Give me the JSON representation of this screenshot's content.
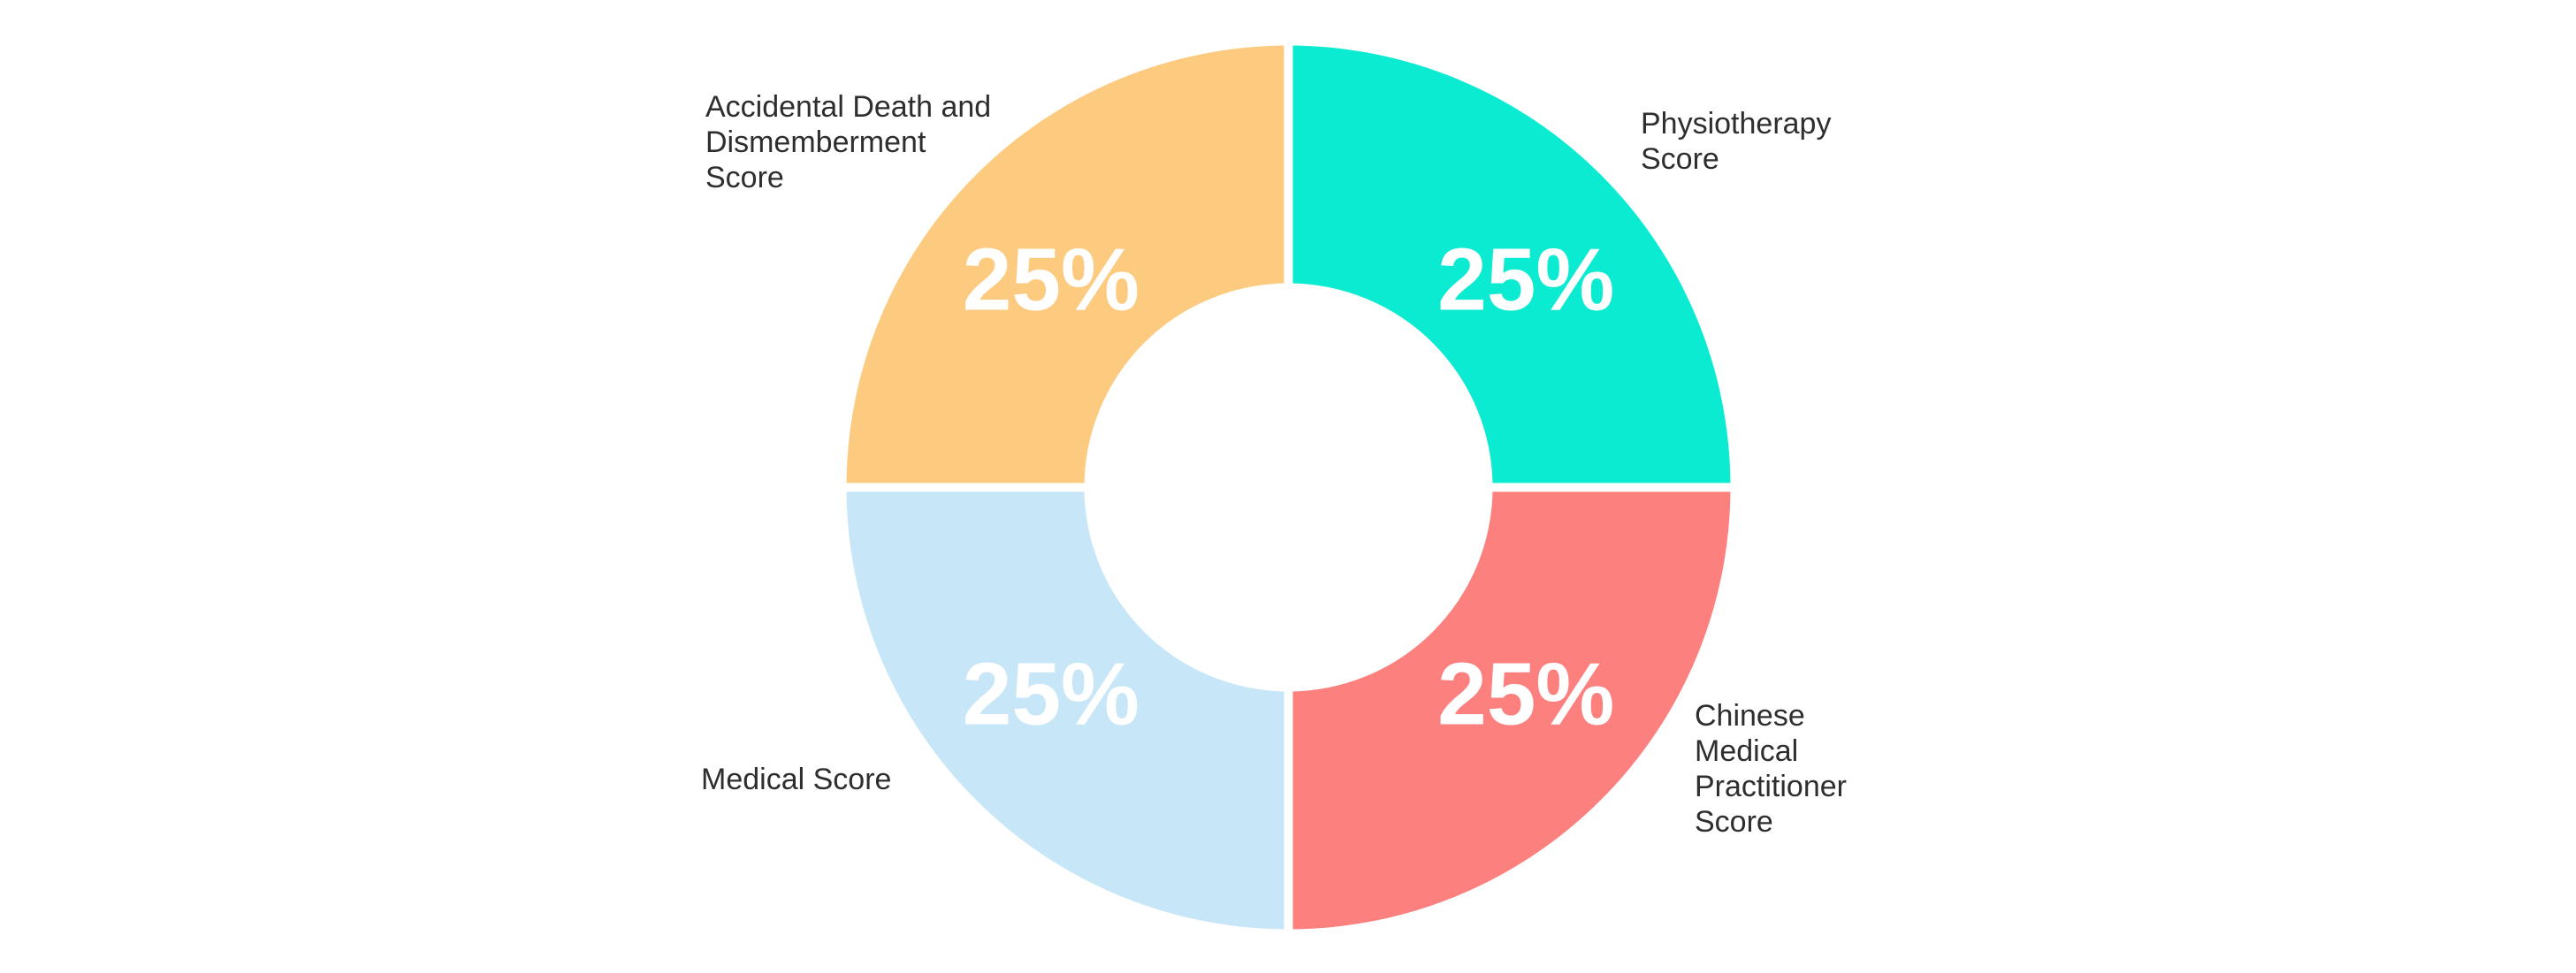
{
  "chart_data": {
    "type": "pie",
    "subtype": "donut",
    "title": "",
    "legend_position": "outside-labels",
    "grid": false,
    "background_color": "#FFFFFF",
    "value_label_color": "#FFFFFF",
    "category_label_color": "#2E2E2E",
    "slice_gap_color": "#FFFFFF",
    "start_angle_deg": 0,
    "direction": "clockwise",
    "inner_radius_ratio": 0.462,
    "values_unit": "%",
    "segments": [
      {
        "label": "Physiotherapy Score",
        "label_lines": [
          "Physiotherapy",
          "Score"
        ],
        "value": 25,
        "display": "25%",
        "color": "#0AEBD1",
        "position": "top-right"
      },
      {
        "label": "Chinese Medical Practitioner Score",
        "label_lines": [
          "Chinese",
          "Medical",
          "Practitioner",
          "Score"
        ],
        "value": 25,
        "display": "25%",
        "color": "#FC807E",
        "position": "bottom-right"
      },
      {
        "label": "Medical Score",
        "label_lines": [
          "Medical Score"
        ],
        "value": 25,
        "display": "25%",
        "color": "#C7E7F8",
        "position": "bottom-left"
      },
      {
        "label": "Accidental Death and Dismemberment Score",
        "label_lines": [
          "Accidental Death and",
          "Dismemberment",
          "Score"
        ],
        "value": 25,
        "display": "25%",
        "color": "#FCCB7F",
        "position": "top-left"
      }
    ]
  }
}
